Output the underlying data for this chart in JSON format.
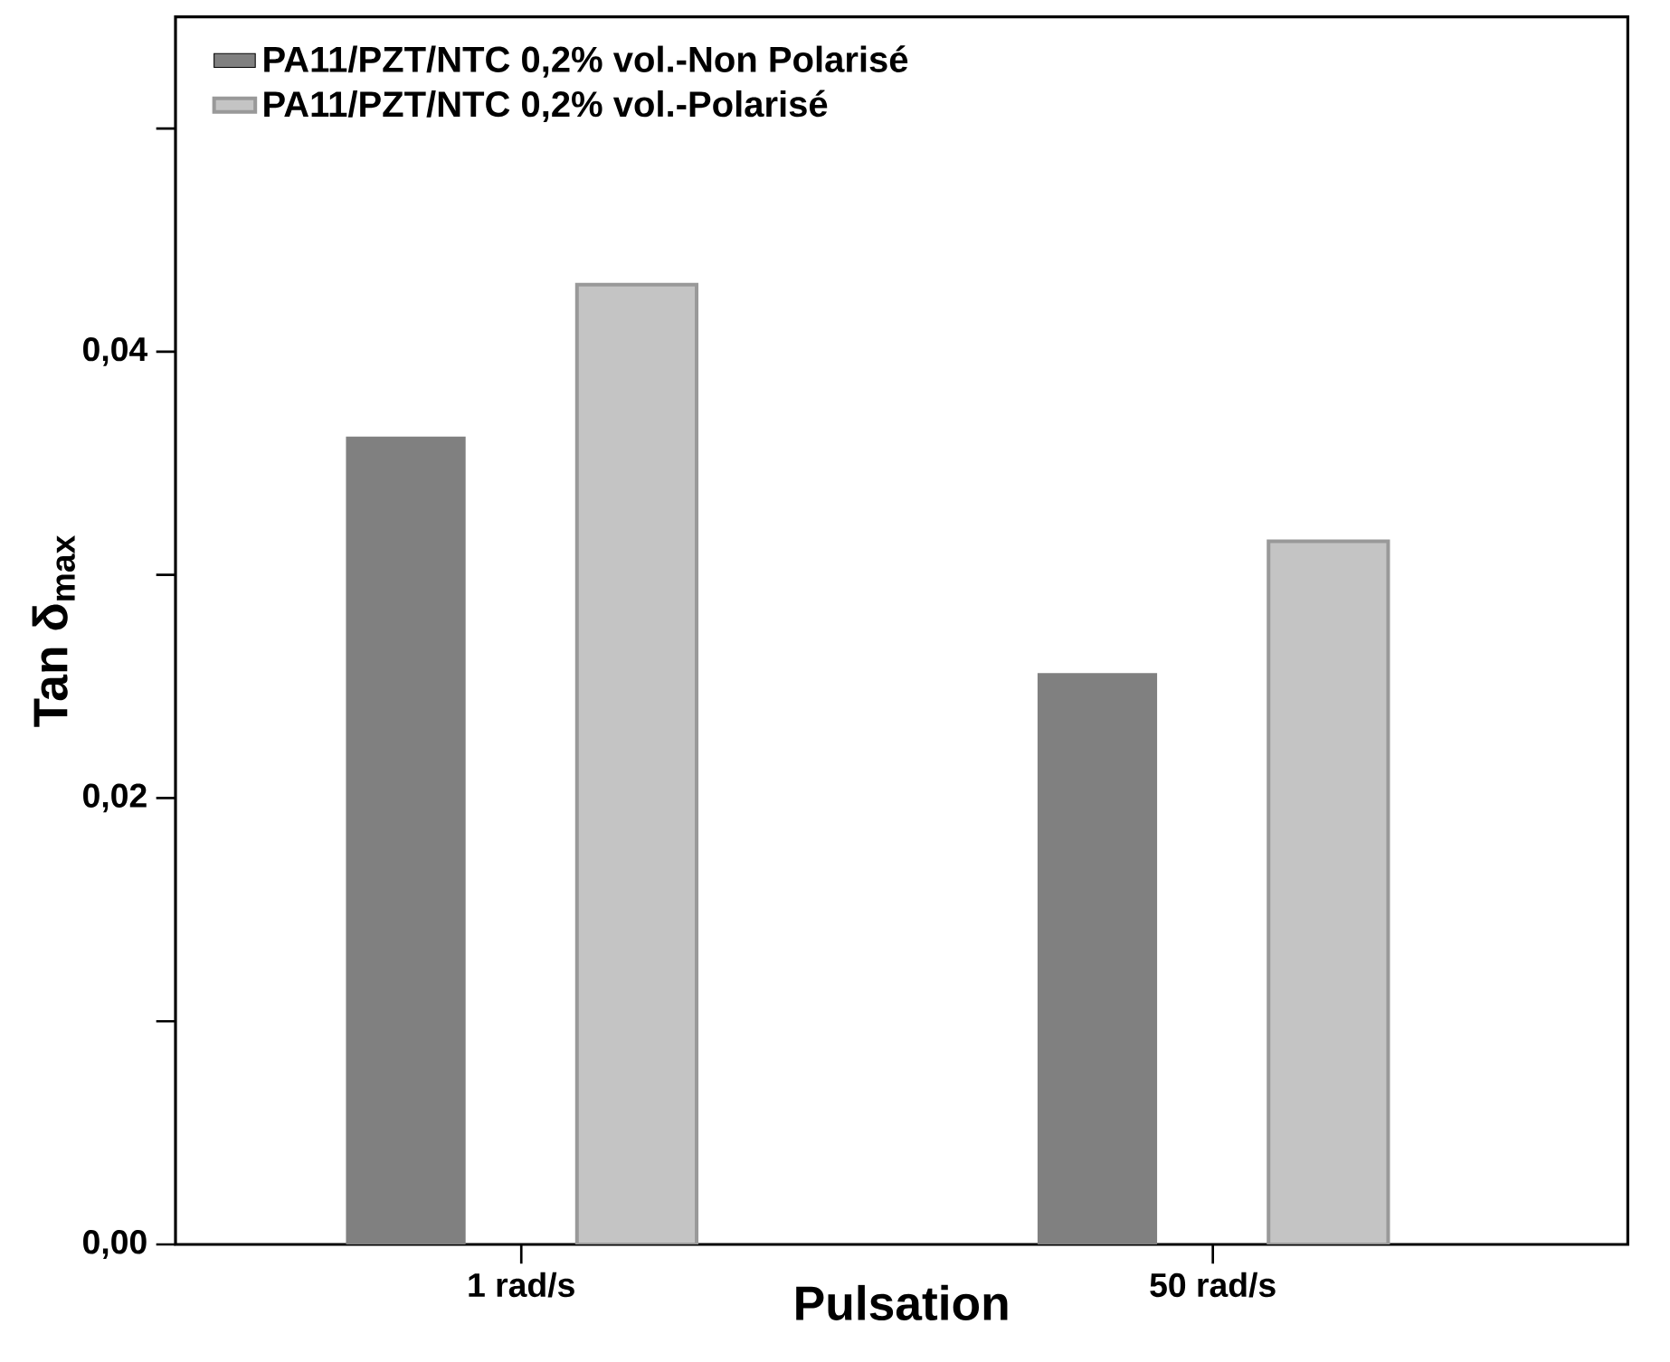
{
  "chart_data": {
    "type": "bar",
    "xlabel": "Pulsation",
    "ylabel": "Tan δ$_{max}$",
    "categories": [
      "1 rad/s",
      "50 rad/s"
    ],
    "series": [
      {
        "name": "PA11/PZT/NTC 0,2% vol.-Non Polarisé",
        "color": "#808080",
        "values": [
          0.0362,
          0.0256
        ]
      },
      {
        "name": "PA11/PZT/NTC 0,2% vol.-Polarisé",
        "color": "#c4c4c4",
        "values": [
          0.043,
          0.0315
        ]
      }
    ],
    "ylim": [
      0,
      0.055
    ],
    "yticks": [
      {
        "value": 0,
        "label": "0,00"
      },
      {
        "value": 0.01,
        "label": null
      },
      {
        "value": 0.02,
        "label": "0,02"
      },
      {
        "value": 0.03,
        "label": null
      },
      {
        "value": 0.04,
        "label": "0,04"
      },
      {
        "value": 0.05,
        "label": null
      }
    ],
    "grid": false,
    "legend": "top left"
  }
}
